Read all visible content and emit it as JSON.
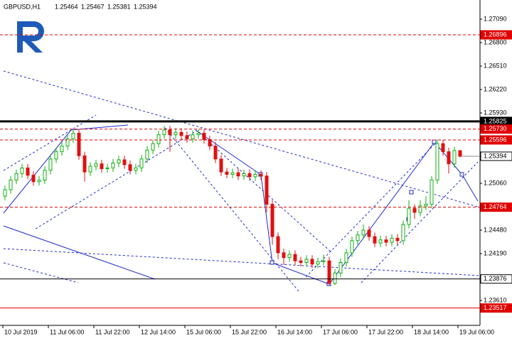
{
  "chart_data": {
    "type": "candlestick",
    "symbol": "GBPUSD,H1",
    "xlabels": [
      "10 Jul 2019",
      "11 Jul 06:00",
      "11 Jul 22:00",
      "12 Jul 14:00",
      "15 Jul 06:00",
      "15 Jul 22:00",
      "16 Jul 14:00",
      "17 Jul 06:00",
      "17 Jul 22:00",
      "18 Jul 14:00",
      "19 Jul 06:00"
    ],
    "ylim": [
      1.23302,
      1.27327
    ],
    "yticks": [
      {
        "value": 1.2709,
        "label": "1.27090"
      },
      {
        "value": 1.268,
        "label": "1.26800"
      },
      {
        "value": 1.2651,
        "label": "1.26510"
      },
      {
        "value": 1.2622,
        "label": "1.26220"
      },
      {
        "value": 1.2593,
        "label": "1.25930"
      },
      {
        "value": 1.2506,
        "label": "1.25060"
      },
      {
        "value": 1.2448,
        "label": "1.24480"
      },
      {
        "value": 1.2419,
        "label": "1.24190"
      },
      {
        "value": 1.2361,
        "label": "1.23610"
      }
    ],
    "up_color": "#12b012",
    "down_color": "#e01010",
    "open": [
      1.249,
      1.2498,
      1.251,
      1.2518,
      1.2525,
      1.2516,
      1.2508,
      1.251,
      1.2522,
      1.2536,
      1.2545,
      1.2552,
      1.2561,
      1.2568,
      1.254,
      1.252,
      1.2527,
      1.253,
      1.2524,
      1.2525,
      1.2531,
      1.2535,
      1.2529,
      1.2522,
      1.2525,
      1.2536,
      1.2547,
      1.2555,
      1.2566,
      1.2572,
      1.2566,
      1.2569,
      1.2565,
      1.2561,
      1.2566,
      1.2568,
      1.256,
      1.2552,
      1.2536,
      1.252,
      1.2517,
      1.2519,
      1.2515,
      1.2518,
      1.2514,
      1.2517,
      1.2515,
      1.248,
      1.244,
      1.242,
      1.2414,
      1.2418,
      1.241,
      1.2408,
      1.2412,
      1.2406,
      1.2409,
      1.241,
      1.2382,
      1.2395,
      1.2408,
      1.242,
      1.2435,
      1.2442,
      1.2448,
      1.244,
      1.2432,
      1.2436,
      1.2433,
      1.2438,
      1.2435,
      1.2455,
      1.2475,
      1.247,
      1.2478,
      1.248,
      1.251,
      1.2555,
      1.2545,
      1.253,
      1.25464
    ],
    "high": [
      1.2503,
      1.2515,
      1.2523,
      1.253,
      1.253,
      1.2521,
      1.2515,
      1.2527,
      1.2541,
      1.255,
      1.2557,
      1.2566,
      1.2573,
      1.2573,
      1.2545,
      1.2532,
      1.2535,
      1.2535,
      1.253,
      1.2536,
      1.254,
      1.254,
      1.2534,
      1.253,
      1.2541,
      1.2552,
      1.256,
      1.2571,
      1.2577,
      1.2577,
      1.2574,
      1.2574,
      1.257,
      1.2571,
      1.2573,
      1.2573,
      1.2565,
      1.2557,
      1.2541,
      1.2525,
      1.2524,
      1.2524,
      1.2523,
      1.2523,
      1.2522,
      1.2522,
      1.252,
      1.2485,
      1.2445,
      1.2425,
      1.2423,
      1.2423,
      1.2415,
      1.2417,
      1.2417,
      1.2414,
      1.2418,
      1.2415,
      1.24,
      1.2413,
      1.2425,
      1.244,
      1.2447,
      1.2455,
      1.2453,
      1.2445,
      1.2441,
      1.2441,
      1.2443,
      1.2443,
      1.246,
      1.2485,
      1.248,
      1.2485,
      1.249,
      1.2515,
      1.256,
      1.256,
      1.255,
      1.2551,
      1.25467
    ],
    "low": [
      1.2485,
      1.2493,
      1.2505,
      1.2513,
      1.2511,
      1.2503,
      1.2503,
      1.2505,
      1.2517,
      1.2531,
      1.254,
      1.2547,
      1.2556,
      1.2535,
      1.2508,
      1.2515,
      1.2522,
      1.2519,
      1.2519,
      1.252,
      1.2526,
      1.2524,
      1.2517,
      1.2517,
      1.252,
      1.2531,
      1.2542,
      1.255,
      1.2561,
      1.2545,
      1.2561,
      1.256,
      1.2556,
      1.2556,
      1.2561,
      1.2555,
      1.2547,
      1.2531,
      1.2515,
      1.2512,
      1.2512,
      1.251,
      1.251,
      1.2509,
      1.2509,
      1.251,
      1.247,
      1.243,
      1.2412,
      1.2405,
      1.2409,
      1.2405,
      1.2403,
      1.2403,
      1.2401,
      1.2401,
      1.2404,
      1.238,
      1.238,
      1.239,
      1.2403,
      1.2415,
      1.243,
      1.2437,
      1.2435,
      1.2427,
      1.2427,
      1.2428,
      1.2428,
      1.243,
      1.243,
      1.245,
      1.2462,
      1.2465,
      1.2473,
      1.2475,
      1.2505,
      1.254,
      1.2518,
      1.2525,
      1.25381
    ],
    "close": [
      1.2498,
      1.251,
      1.2518,
      1.2525,
      1.2516,
      1.2508,
      1.251,
      1.2522,
      1.2536,
      1.2545,
      1.2552,
      1.2561,
      1.2568,
      1.254,
      1.252,
      1.2527,
      1.253,
      1.2524,
      1.2525,
      1.2531,
      1.2535,
      1.2529,
      1.2522,
      1.2525,
      1.2536,
      1.2547,
      1.2555,
      1.2566,
      1.2572,
      1.2566,
      1.2569,
      1.2565,
      1.2561,
      1.2566,
      1.2568,
      1.256,
      1.2552,
      1.2536,
      1.252,
      1.2517,
      1.2519,
      1.2515,
      1.2518,
      1.2514,
      1.2517,
      1.2515,
      1.248,
      1.244,
      1.242,
      1.2414,
      1.2418,
      1.241,
      1.2408,
      1.2412,
      1.2406,
      1.2409,
      1.241,
      1.2382,
      1.2395,
      1.2408,
      1.242,
      1.2435,
      1.2442,
      1.2448,
      1.244,
      1.2432,
      1.2436,
      1.2433,
      1.2438,
      1.2435,
      1.2455,
      1.2475,
      1.247,
      1.2478,
      1.248,
      1.251,
      1.2555,
      1.2545,
      1.253,
      1.25464,
      1.25394
    ],
    "levels": [
      {
        "price": 1.26896,
        "color": "#e00000",
        "dashed": true
      },
      {
        "price": 1.25825,
        "color": "#000000",
        "dashed": false,
        "width": 3
      },
      {
        "price": {
          "value": 1.2573,
          "label": "1.25730"
        },
        "color": "#e00000",
        "dashed": true
      },
      {
        "price": 1.25596,
        "color": "#e00000",
        "dashed": true
      },
      {
        "price": 1.24764,
        "color": "#e00000",
        "dashed": true
      },
      {
        "price": 1.23876,
        "color": "#000000",
        "dashed": false,
        "width": 1,
        "box": "#ffffff"
      },
      {
        "price": 1.23517,
        "color": "#e00000",
        "dashed": false,
        "width": 1
      }
    ]
  }
}
